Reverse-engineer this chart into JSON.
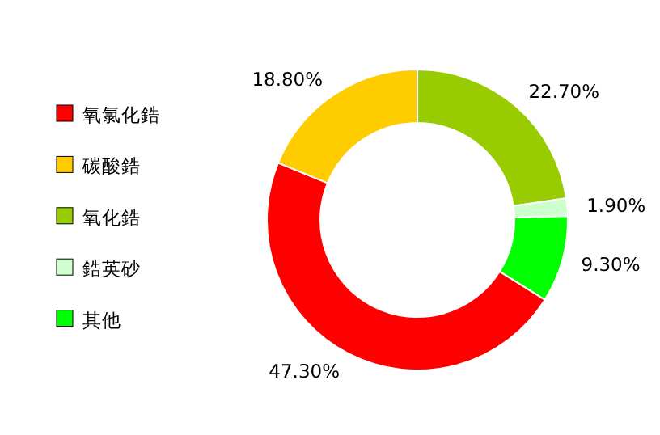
{
  "chart_data": {
    "type": "donut",
    "categories": [
      "氧氯化鋯",
      "碳酸鋯",
      "氧化鋯",
      "鋯英砂",
      "其他"
    ],
    "values": [
      47.3,
      18.8,
      22.7,
      1.9,
      9.3
    ],
    "colors": [
      "#ff0000",
      "#ffcc00",
      "#99cc00",
      "#ccffcc",
      "#00ff00"
    ],
    "value_labels": [
      "47.30%",
      "18.80%",
      "22.70%",
      "1.90%",
      "9.30%"
    ],
    "legend": "left"
  }
}
